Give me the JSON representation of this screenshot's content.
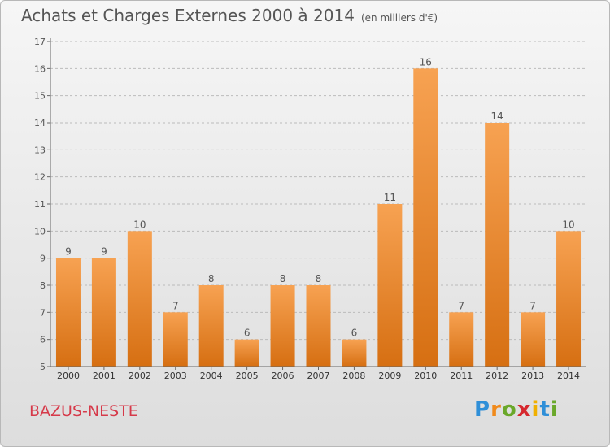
{
  "title": "Achats et Charges Externes 2000 à 2014",
  "unit": "(en milliers d'€)",
  "location": "BAZUS-NESTE",
  "logo": {
    "letters": [
      "P",
      "r",
      "o",
      "x",
      "i",
      "t",
      "i"
    ],
    "colors": [
      "#2f8fd8",
      "#f08a1c",
      "#6aa82a",
      "#d6282e",
      "#f0b000",
      "#2f8fd8",
      "#6aa82a"
    ]
  },
  "colors": {
    "bar_light": "#f7a252",
    "bar_dark": "#d66f12",
    "text": "#555555",
    "grid": "#bbbbbb"
  },
  "chart_data": {
    "type": "bar",
    "categories": [
      "2000",
      "2001",
      "2002",
      "2003",
      "2004",
      "2005",
      "2006",
      "2007",
      "2008",
      "2009",
      "2010",
      "2011",
      "2012",
      "2013",
      "2014"
    ],
    "values": [
      9,
      9,
      10,
      7,
      8,
      6,
      8,
      8,
      6,
      11,
      16,
      7,
      14,
      7,
      10
    ],
    "ylim": [
      5,
      17
    ],
    "yticks": [
      5,
      6,
      7,
      8,
      9,
      10,
      11,
      12,
      13,
      14,
      15,
      16,
      17
    ],
    "grid": "dashed horizontal"
  }
}
